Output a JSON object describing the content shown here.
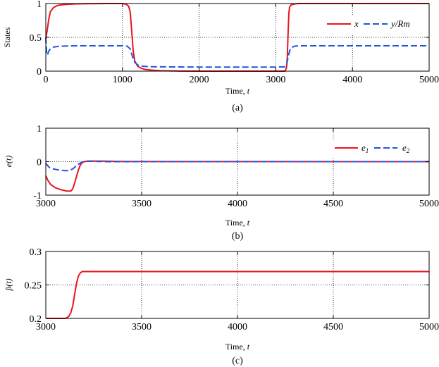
{
  "chart_data": [
    {
      "id": "a",
      "type": "line",
      "caption": "(a)",
      "xlabel": "Time,",
      "xlabel_var": "t",
      "ylabel": "States",
      "xlim": [
        0,
        5000
      ],
      "ylim": [
        0,
        1
      ],
      "xticks": [
        0,
        1000,
        2000,
        3000,
        4000,
        5000
      ],
      "yticks": [
        0,
        0.5,
        1
      ],
      "xtick_labels": [
        "0",
        "1000",
        "2000",
        "3000",
        "4000",
        "5000"
      ],
      "ytick_labels": [
        "0",
        "0.5",
        "1"
      ],
      "grid": true,
      "legend_position": "top-right",
      "series": [
        {
          "name": "x",
          "legend_label": "x",
          "color": "#e8141e",
          "dash": "solid",
          "x": [
            0,
            20,
            40,
            60,
            100,
            150,
            200,
            300,
            400,
            600,
            800,
            1000,
            1050,
            1080,
            1100,
            1120,
            1140,
            1160,
            1200,
            1250,
            1300,
            1400,
            1500,
            1700,
            2000,
            2500,
            3000,
            3120,
            3140,
            3150,
            3160,
            3170,
            3180,
            3200,
            3250,
            3300,
            3500,
            4000,
            5000
          ],
          "values": [
            0.48,
            0.62,
            0.78,
            0.88,
            0.94,
            0.97,
            0.98,
            0.99,
            0.995,
            0.998,
            1.0,
            1.0,
            0.99,
            0.96,
            0.88,
            0.6,
            0.3,
            0.15,
            0.07,
            0.04,
            0.025,
            0.012,
            0.006,
            0.002,
            0.0,
            0.0,
            0.0,
            0.0,
            0.05,
            0.2,
            0.55,
            0.85,
            0.95,
            0.98,
            0.995,
            1.0,
            1.0,
            1.0,
            1.0
          ]
        },
        {
          "name": "y/Rm",
          "legend_label": "y/Rm",
          "color": "#2255dd",
          "dash": "dashed",
          "x": [
            0,
            10,
            20,
            40,
            60,
            100,
            150,
            200,
            400,
            1000,
            1060,
            1100,
            1130,
            1160,
            1200,
            1250,
            1300,
            1400,
            2000,
            3000,
            3120,
            3140,
            3160,
            3180,
            3200,
            3250,
            3300,
            5000
          ],
          "values": [
            0.5,
            0.26,
            0.24,
            0.3,
            0.33,
            0.355,
            0.365,
            0.37,
            0.375,
            0.375,
            0.37,
            0.33,
            0.22,
            0.13,
            0.09,
            0.075,
            0.07,
            0.065,
            0.06,
            0.06,
            0.065,
            0.09,
            0.2,
            0.3,
            0.35,
            0.37,
            0.375,
            0.375
          ]
        }
      ]
    },
    {
      "id": "b",
      "type": "line",
      "caption": "(b)",
      "xlabel": "Time,",
      "xlabel_var": "t",
      "ylabel": "e(t)",
      "xlim": [
        3000,
        5000
      ],
      "ylim": [
        -1,
        1
      ],
      "xticks": [
        3000,
        3500,
        4000,
        4500,
        5000
      ],
      "yticks": [
        -1,
        0,
        1
      ],
      "xtick_labels": [
        "3000",
        "3500",
        "4000",
        "4500",
        "5000"
      ],
      "ytick_labels": [
        "-1",
        "0",
        "1"
      ],
      "grid": true,
      "legend_position": "top-right",
      "series": [
        {
          "name": "e1",
          "legend_label": "e",
          "legend_sub": "1",
          "color": "#e8141e",
          "dash": "solid",
          "x": [
            3000,
            3010,
            3025,
            3050,
            3080,
            3110,
            3130,
            3140,
            3150,
            3160,
            3170,
            3180,
            3190,
            3200,
            3220,
            3250,
            3300,
            3400,
            5000
          ],
          "values": [
            -0.42,
            -0.55,
            -0.68,
            -0.78,
            -0.84,
            -0.88,
            -0.88,
            -0.82,
            -0.65,
            -0.45,
            -0.25,
            -0.1,
            -0.03,
            0.0,
            0.02,
            0.02,
            0.015,
            0.005,
            0.0
          ]
        },
        {
          "name": "e2",
          "legend_label": "e",
          "legend_sub": "2",
          "color": "#2255dd",
          "dash": "dashed",
          "x": [
            3000,
            3010,
            3020,
            3040,
            3070,
            3100,
            3120,
            3140,
            3150,
            3160,
            3170,
            3180,
            3190,
            3200,
            3220,
            3250,
            3300,
            5000
          ],
          "values": [
            -0.05,
            -0.12,
            -0.18,
            -0.22,
            -0.25,
            -0.27,
            -0.27,
            -0.22,
            -0.17,
            -0.12,
            -0.08,
            -0.04,
            -0.01,
            0.0,
            0.01,
            0.01,
            0.0,
            0.0
          ]
        }
      ]
    },
    {
      "id": "c",
      "type": "line",
      "caption": "(c)",
      "xlabel": "Time,",
      "xlabel_var": "t",
      "ylabel": "p̂(t)",
      "xlim": [
        3000,
        5000
      ],
      "ylim": [
        0.2,
        0.3
      ],
      "xticks": [
        3000,
        3500,
        4000,
        4500,
        5000
      ],
      "yticks": [
        0.2,
        0.25,
        0.3
      ],
      "xtick_labels": [
        "3000",
        "3500",
        "4000",
        "4500",
        "5000"
      ],
      "ytick_labels": [
        "0.2",
        "0.25",
        "0.3"
      ],
      "grid": true,
      "legend_position": "none",
      "series": [
        {
          "name": "p_hat",
          "color": "#e8141e",
          "dash": "solid",
          "x": [
            3000,
            3100,
            3110,
            3120,
            3130,
            3140,
            3150,
            3160,
            3170,
            3180,
            3190,
            3200,
            3250,
            5000
          ],
          "values": [
            0.2,
            0.2,
            0.201,
            0.203,
            0.208,
            0.218,
            0.235,
            0.252,
            0.263,
            0.268,
            0.27,
            0.27,
            0.27,
            0.27
          ]
        }
      ]
    }
  ]
}
